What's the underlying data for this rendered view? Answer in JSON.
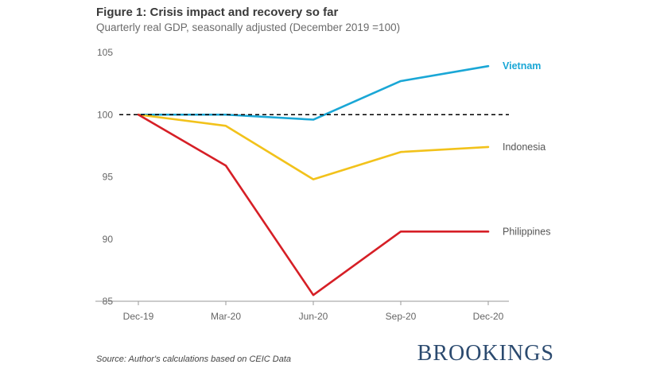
{
  "header": {
    "title": "Figure 1: Crisis impact and recovery so far",
    "subtitle": "Quarterly real GDP, seasonally adjusted (December 2019 =100)"
  },
  "footer": {
    "source": "Source: Author's calculations based on CEIC Data",
    "brand": "BROOKINGS"
  },
  "chart_data": {
    "type": "line",
    "title": "Figure 1: Crisis impact and recovery so far",
    "subtitle": "Quarterly real GDP, seasonally adjusted (December 2019 =100)",
    "xlabel": "",
    "ylabel": "",
    "categories": [
      "Dec-19",
      "Mar-20",
      "Jun-20",
      "Sep-20",
      "Dec-20"
    ],
    "ylim": [
      85,
      105
    ],
    "yticks": [
      85,
      90,
      95,
      100,
      105
    ],
    "reference_line": {
      "value": 100,
      "style": "dashed",
      "color": "#000000"
    },
    "grid": false,
    "legend": "labels at line ends (right)",
    "series": [
      {
        "name": "Vietnam",
        "color": "#1aa7d6",
        "label_bold": true,
        "values": [
          100,
          100,
          99.6,
          102.7,
          103.9
        ]
      },
      {
        "name": "Indonesia",
        "color": "#f2c21b",
        "label_bold": false,
        "values": [
          100,
          99.1,
          94.8,
          97.0,
          97.4
        ]
      },
      {
        "name": "Philippines",
        "color": "#d61f26",
        "label_bold": false,
        "values": [
          100,
          95.9,
          85.5,
          90.6,
          90.6
        ]
      }
    ]
  }
}
